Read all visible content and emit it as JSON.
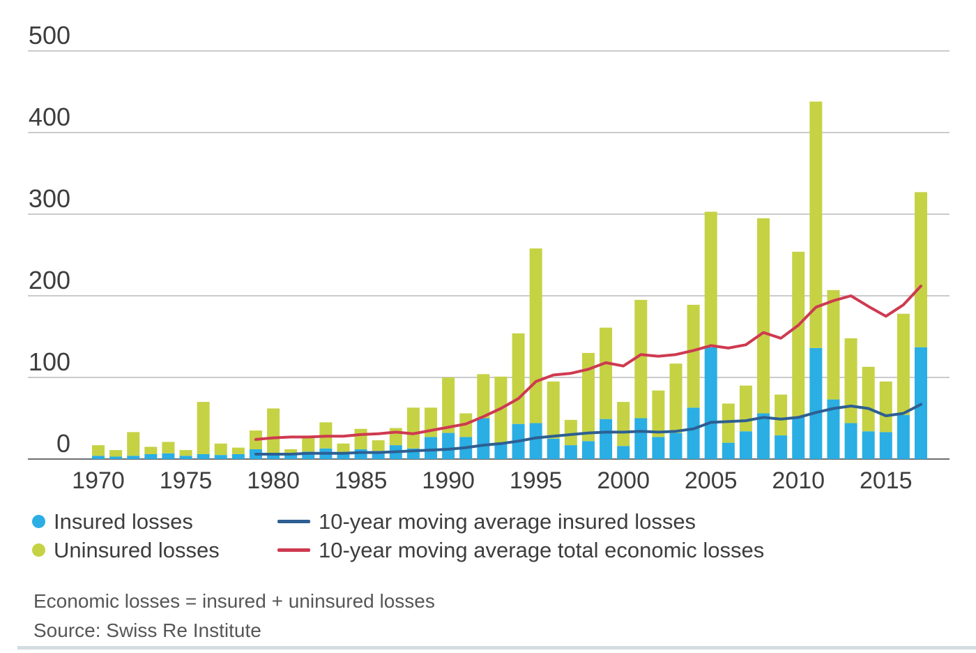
{
  "chart_data": {
    "type": "bar",
    "subtype": "stacked-bars-with-moving-average-lines",
    "title": "",
    "xlabel": "",
    "ylabel": "",
    "ylim": [
      0,
      500
    ],
    "y_ticks": [
      0,
      100,
      200,
      300,
      400,
      500
    ],
    "x_tick_years": [
      1970,
      1975,
      1980,
      1985,
      1990,
      1995,
      2000,
      2005,
      2010,
      2015
    ],
    "grid": "horizontal",
    "years": [
      1970,
      1971,
      1972,
      1973,
      1974,
      1975,
      1976,
      1977,
      1978,
      1979,
      1980,
      1981,
      1982,
      1983,
      1984,
      1985,
      1986,
      1987,
      1988,
      1989,
      1990,
      1991,
      1992,
      1993,
      1994,
      1995,
      1996,
      1997,
      1998,
      1999,
      2000,
      2001,
      2002,
      2003,
      2004,
      2005,
      2006,
      2007,
      2008,
      2009,
      2010,
      2011,
      2012,
      2013,
      2014,
      2015,
      2016,
      2017
    ],
    "series": [
      {
        "name": "Insured losses",
        "type": "bar",
        "color": "#2aaee4",
        "values": [
          4,
          3,
          4,
          6,
          7,
          4,
          6,
          5,
          6,
          12,
          7,
          7,
          9,
          13,
          8,
          12,
          10,
          17,
          13,
          27,
          32,
          27,
          50,
          20,
          43,
          44,
          25,
          17,
          22,
          49,
          16,
          50,
          27,
          32,
          63,
          137,
          20,
          34,
          56,
          29,
          52,
          136,
          73,
          44,
          34,
          33,
          54,
          137
        ]
      },
      {
        "name": "Uninsured losses",
        "type": "bar",
        "color": "#c5d244",
        "values": [
          13,
          8,
          29,
          9,
          14,
          7,
          64,
          14,
          8,
          23,
          55,
          5,
          17,
          32,
          11,
          25,
          13,
          21,
          50,
          36,
          68,
          29,
          54,
          81,
          111,
          214,
          70,
          31,
          108,
          112,
          54,
          145,
          57,
          85,
          126,
          166,
          48,
          56,
          239,
          50,
          202,
          302,
          134,
          104,
          79,
          62,
          124,
          190
        ]
      },
      {
        "name": "10-year moving average insured losses",
        "type": "line",
        "color": "#2d5f92",
        "values": [
          null,
          null,
          null,
          null,
          null,
          null,
          null,
          null,
          null,
          6,
          6,
          6,
          7,
          7,
          7,
          8,
          8,
          9,
          10,
          11,
          12,
          14,
          17,
          19,
          22,
          26,
          28,
          30,
          32,
          33,
          33,
          34,
          33,
          34,
          37,
          45,
          46,
          47,
          51,
          49,
          51,
          57,
          62,
          65,
          62,
          53,
          56,
          67
        ]
      },
      {
        "name": "10-year moving average total economic losses",
        "type": "line",
        "color": "#ce3a50",
        "values": [
          null,
          null,
          null,
          null,
          null,
          null,
          null,
          null,
          null,
          24,
          26,
          27,
          27,
          28,
          28,
          30,
          31,
          33,
          31,
          35,
          39,
          43,
          52,
          62,
          74,
          95,
          103,
          105,
          110,
          118,
          114,
          128,
          126,
          128,
          133,
          139,
          136,
          140,
          155,
          148,
          164,
          186,
          194,
          200,
          187,
          175,
          189,
          212
        ]
      }
    ],
    "legend": [
      {
        "swatch": "dot",
        "color": "#2aaee4",
        "label": "Insured losses"
      },
      {
        "swatch": "dot",
        "color": "#c5d244",
        "label": "Uninsured losses"
      },
      {
        "swatch": "line",
        "color": "#2d5f92",
        "label": "10-year moving average insured losses"
      },
      {
        "swatch": "line",
        "color": "#ce3a50",
        "label": "10-year moving average total economic losses"
      }
    ],
    "legend_position": "bottom"
  },
  "footnotes": {
    "formula": "Economic losses = insured + uninsured losses",
    "source": "Source: Swiss Re Institute"
  },
  "colors": {
    "insured": "#2aaee4",
    "uninsured": "#c5d244",
    "ma_insured_line": "#2d5f92",
    "ma_total_line": "#ce3a50",
    "gridline": "#cbcbcb",
    "baseline": "#6e6e6e",
    "axis_text": "#3d3d3d",
    "footnote_text": "#565656",
    "bottom_rule": "#d3dce1"
  }
}
